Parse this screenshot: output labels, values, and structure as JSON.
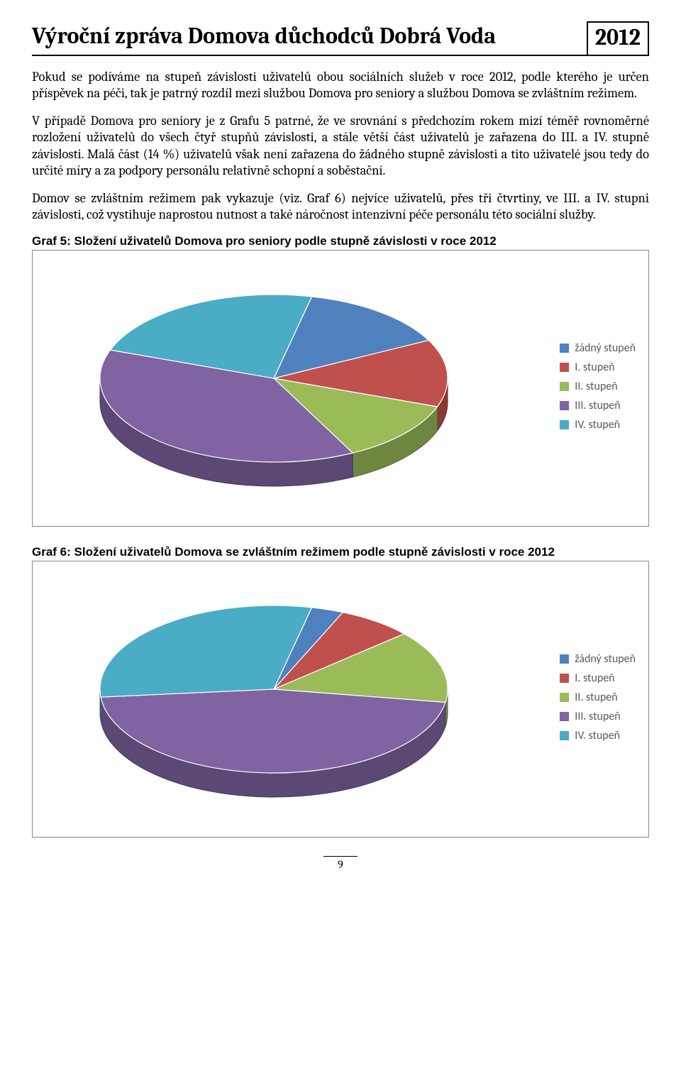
{
  "header": {
    "title": "Výroční zpráva Domova důchodců Dobrá Voda",
    "year": "2012"
  },
  "paragraphs": {
    "p1": "Pokud se podíváme na stupeň závislosti uživatelů obou sociálních služeb v roce 2012, podle kterého je určen příspěvek na péči, tak je patrný rozdíl mezi službou Domova pro seniory a službou Domova se zvláštním režimem.",
    "p2": "V případě Domova pro seniory je z Grafu 5 patrné, že ve srovnání s předchozím rokem mizí téměř rovnoměrné rozložení uživatelů do všech čtyř stupňů závislosti, a stále větší část uživatelů je zařazena do III. a IV. stupně závislosti. Malá část (14 %) uživatelů však není zařazena do žádného stupně závislosti a tito uživatelé jsou tedy do určité míry a za podpory personálu relativně schopní a soběstační.",
    "p3": "Domov se zvláštním režimem pak vykazuje (viz. Graf 6) nejvíce uživatelů, přes tři čtvrtiny, ve III. a IV. stupni závislosti, což vystihuje naprostou nutnost a také náročnost intenzivní péče personálu této sociální služby."
  },
  "chart5": {
    "title": "Graf 5: Složení uživatelů Domova pro seniory podle stupně závislosti v roce 2012",
    "type": "pie3d",
    "values": [
      14,
      13,
      12,
      38,
      23
    ],
    "labels": [
      "žádný stupeň",
      "I. stupeň",
      "II. stupeň",
      "III. stupeň",
      "IV. stupeň"
    ],
    "colors": [
      "#4f81bd",
      "#c0504d",
      "#9bbb59",
      "#8064a2",
      "#4bacc6"
    ],
    "edge_colors": [
      "#385d8a",
      "#8c3836",
      "#71893f",
      "#5c4776",
      "#357d91"
    ],
    "background": "#ffffff",
    "legend_fontsize": 16,
    "legend_textcolor": "#595959"
  },
  "chart6": {
    "title": "Graf 6: Složení uživatelů Domova se zvláštním režimem podle stupně závislosti v roce 2012",
    "type": "pie3d",
    "values": [
      3,
      7,
      14,
      46,
      30
    ],
    "labels": [
      "žádný stupeň",
      "I. stupeň",
      "II. stupeň",
      "III. stupeň",
      "IV. stupeň"
    ],
    "colors": [
      "#4f81bd",
      "#c0504d",
      "#9bbb59",
      "#8064a2",
      "#4bacc6"
    ],
    "edge_colors": [
      "#385d8a",
      "#8c3836",
      "#71893f",
      "#5c4776",
      "#357d91"
    ],
    "background": "#ffffff",
    "legend_fontsize": 16,
    "legend_textcolor": "#595959"
  },
  "page_number": "9"
}
